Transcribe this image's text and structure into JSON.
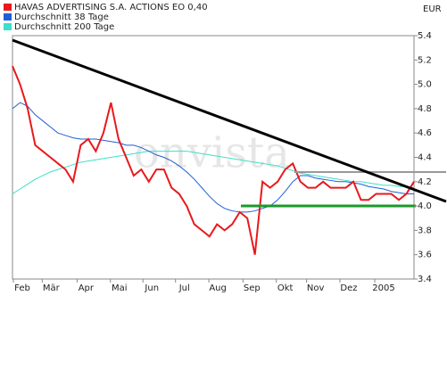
{
  "chart_data": {
    "type": "line",
    "title": "HAVAS ADVERTISING S.A. ACTIONS EO 0,40",
    "currency": "EUR",
    "watermark": "onvista",
    "series": [
      {
        "name": "HAVAS ADVERTISING S.A. ACTIONS EO 0,40",
        "color": "#e8191c",
        "values": [
          5.15,
          5.0,
          4.8,
          4.5,
          4.45,
          4.4,
          4.35,
          4.3,
          4.2,
          4.5,
          4.55,
          4.45,
          4.6,
          4.85,
          4.55,
          4.4,
          4.25,
          4.3,
          4.2,
          4.3,
          4.3,
          4.15,
          4.1,
          4.0,
          3.85,
          3.8,
          3.75,
          3.85,
          3.8,
          3.85,
          3.95,
          3.9,
          3.6,
          4.2,
          4.15,
          4.2,
          4.3,
          4.35,
          4.2,
          4.15,
          4.15,
          4.2,
          4.15,
          4.15,
          4.15,
          4.2,
          4.05,
          4.05,
          4.1,
          4.1,
          4.1,
          4.05,
          4.1,
          4.2
        ]
      },
      {
        "name": "Durchschnitt 38 Tage",
        "color": "#1f5fd6",
        "values": [
          4.8,
          4.85,
          4.82,
          4.75,
          4.7,
          4.65,
          4.6,
          4.58,
          4.56,
          4.55,
          4.55,
          4.55,
          4.54,
          4.53,
          4.52,
          4.5,
          4.5,
          4.48,
          4.45,
          4.42,
          4.4,
          4.37,
          4.33,
          4.28,
          4.22,
          4.15,
          4.08,
          4.02,
          3.98,
          3.96,
          3.95,
          3.95,
          3.96,
          3.98,
          4.0,
          4.05,
          4.12,
          4.2,
          4.25,
          4.25,
          4.23,
          4.22,
          4.21,
          4.2,
          4.2,
          4.19,
          4.18,
          4.16,
          4.15,
          4.14,
          4.12,
          4.11,
          4.1,
          4.1
        ]
      },
      {
        "name": "Durchschnitt 200 Tage",
        "color": "#3de0c8",
        "values": [
          4.1,
          4.14,
          4.18,
          4.22,
          4.25,
          4.28,
          4.3,
          4.32,
          4.34,
          4.36,
          4.37,
          4.38,
          4.39,
          4.4,
          4.41,
          4.42,
          4.43,
          4.44,
          4.45,
          4.45,
          4.45,
          4.45,
          4.45,
          4.45,
          4.44,
          4.43,
          4.42,
          4.41,
          4.4,
          4.39,
          4.38,
          4.37,
          4.36,
          4.35,
          4.34,
          4.33,
          4.31,
          4.29,
          4.27,
          4.26,
          4.25,
          4.24,
          4.23,
          4.22,
          4.21,
          4.2,
          4.2,
          4.19,
          4.18,
          4.17,
          4.17,
          4.16,
          4.16,
          4.15
        ]
      }
    ],
    "xlim": [
      0,
      53
    ],
    "xticks": [
      {
        "value": 1.3,
        "label": "Feb"
      },
      {
        "value": 5.1,
        "label": "Mär"
      },
      {
        "value": 9.7,
        "label": "Apr"
      },
      {
        "value": 14.1,
        "label": "Mai"
      },
      {
        "value": 18.4,
        "label": "Jun"
      },
      {
        "value": 22.7,
        "label": "Jul"
      },
      {
        "value": 27.1,
        "label": "Aug"
      },
      {
        "value": 31.6,
        "label": "Sep"
      },
      {
        "value": 36.0,
        "label": "Okt"
      },
      {
        "value": 40.0,
        "label": "Nov"
      },
      {
        "value": 44.4,
        "label": "Dez"
      },
      {
        "value": 49.0,
        "label": "2005"
      }
    ],
    "ylim": [
      3.4,
      5.4
    ],
    "yticks": [
      {
        "value": 3.4,
        "label": "3.4"
      },
      {
        "value": 3.6,
        "label": "3.6"
      },
      {
        "value": 3.8,
        "label": "3.8"
      },
      {
        "value": 4.0,
        "label": "4.0"
      },
      {
        "value": 4.2,
        "label": "4.2"
      },
      {
        "value": 4.4,
        "label": "4.4"
      },
      {
        "value": 4.6,
        "label": "4.6"
      },
      {
        "value": 4.8,
        "label": "4.8"
      },
      {
        "value": 5.0,
        "label": "5.0"
      },
      {
        "value": 5.2,
        "label": "5.2"
      },
      {
        "value": 5.4,
        "label": "5.4"
      }
    ]
  }
}
